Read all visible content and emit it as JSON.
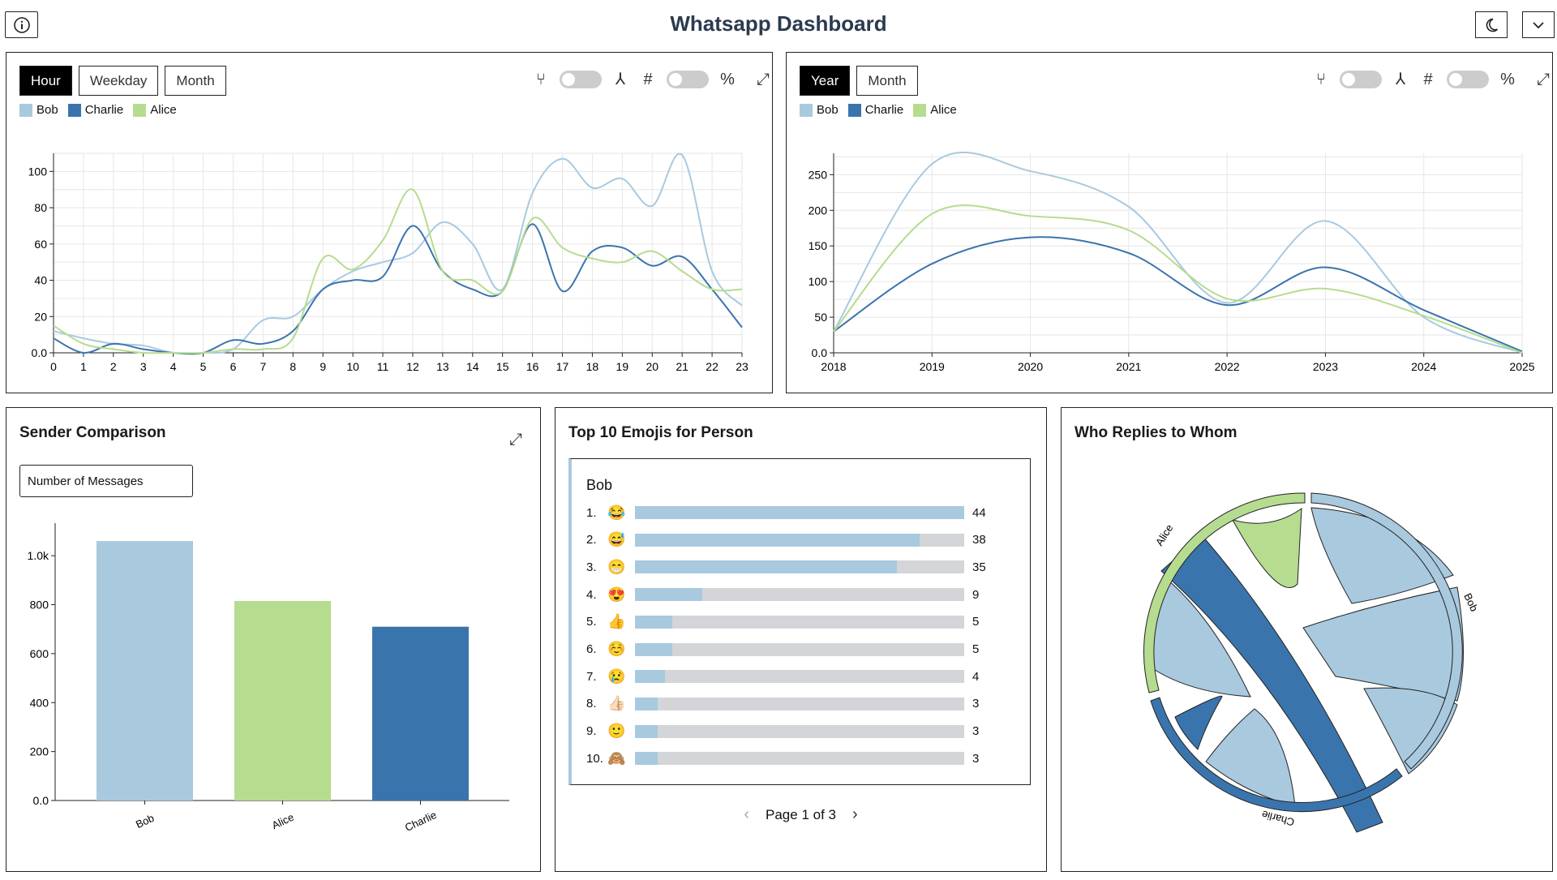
{
  "header": {
    "title": "Whatsapp Dashboard"
  },
  "colors": {
    "bob": "#a9c9df",
    "charlie": "#3a74ad",
    "alice": "#b6dc8f"
  },
  "hour_panel": {
    "tabs": [
      "Hour",
      "Weekday",
      "Month"
    ],
    "active_tab": "Hour",
    "icons": [
      "fork-icon",
      "merge-icon",
      "hash-icon",
      "percent-icon"
    ],
    "legend": [
      "Bob",
      "Charlie",
      "Alice"
    ]
  },
  "year_panel": {
    "tabs": [
      "Year",
      "Month"
    ],
    "active_tab": "Year",
    "legend": [
      "Bob",
      "Charlie",
      "Alice"
    ]
  },
  "sender_panel": {
    "title": "Sender Comparison",
    "select_value": "Number of Messages"
  },
  "emoji_panel": {
    "title": "Top 10 Emojis for Person",
    "person": "Bob",
    "pager": "Page 1 of 3",
    "rows": [
      {
        "rank": "1.",
        "emoji": "😂",
        "count": "44",
        "value": 44
      },
      {
        "rank": "2.",
        "emoji": "😅",
        "count": "38",
        "value": 38
      },
      {
        "rank": "3.",
        "emoji": "😁",
        "count": "35",
        "value": 35
      },
      {
        "rank": "4.",
        "emoji": "😍",
        "count": "9",
        "value": 9
      },
      {
        "rank": "5.",
        "emoji": "👍",
        "count": "5",
        "value": 5
      },
      {
        "rank": "6.",
        "emoji": "☺️",
        "count": "5",
        "value": 5
      },
      {
        "rank": "7.",
        "emoji": "😢",
        "count": "4",
        "value": 4
      },
      {
        "rank": "8.",
        "emoji": "👍🏻",
        "count": "3",
        "value": 3
      },
      {
        "rank": "9.",
        "emoji": "🙂",
        "count": "3",
        "value": 3
      },
      {
        "rank": "10.",
        "emoji": "🙈",
        "count": "3",
        "value": 3
      }
    ]
  },
  "chord_panel": {
    "title": "Who Replies to Whom",
    "labels": [
      "Alice",
      "Bob",
      "Charlie"
    ]
  },
  "chart_data": [
    {
      "type": "line",
      "x": [
        0,
        1,
        2,
        3,
        4,
        5,
        6,
        7,
        8,
        9,
        10,
        11,
        12,
        13,
        14,
        15,
        16,
        17,
        18,
        19,
        20,
        21,
        22,
        23
      ],
      "ylim": [
        0,
        110
      ],
      "yticks": [
        "0.0",
        "20",
        "40",
        "60",
        "80",
        "100"
      ],
      "series": [
        {
          "name": "Bob",
          "values": [
            12,
            8,
            5,
            4,
            0,
            0,
            2,
            18,
            20,
            35,
            45,
            50,
            55,
            72,
            60,
            35,
            88,
            107,
            91,
            96,
            81,
            109,
            45,
            26
          ]
        },
        {
          "name": "Charlie",
          "values": [
            8,
            0,
            5,
            2,
            0,
            0,
            7,
            5,
            12,
            35,
            40,
            42,
            70,
            45,
            35,
            34,
            71,
            34,
            56,
            58,
            48,
            53,
            35,
            14
          ]
        },
        {
          "name": "Alice",
          "values": [
            15,
            5,
            2,
            0,
            0,
            0,
            2,
            2,
            8,
            52,
            46,
            62,
            90,
            45,
            40,
            34,
            74,
            58,
            52,
            50,
            56,
            45,
            35,
            35
          ]
        }
      ]
    },
    {
      "type": "line",
      "x": [
        2018,
        2019,
        2020,
        2021,
        2022,
        2023,
        2024,
        2025
      ],
      "ylim": [
        0,
        280
      ],
      "yticks": [
        "0.0",
        "50",
        "100",
        "150",
        "200",
        "250"
      ],
      "series": [
        {
          "name": "Bob",
          "values": [
            30,
            265,
            255,
            205,
            70,
            185,
            50,
            0
          ]
        },
        {
          "name": "Charlie",
          "values": [
            30,
            125,
            162,
            140,
            67,
            120,
            60,
            2
          ]
        },
        {
          "name": "Alice",
          "values": [
            30,
            195,
            192,
            172,
            76,
            90,
            52,
            0
          ]
        }
      ]
    },
    {
      "type": "bar",
      "categories": [
        "Bob",
        "Alice",
        "Charlie"
      ],
      "values": [
        1060,
        815,
        710
      ],
      "ylim": [
        0,
        1100
      ],
      "yticks": [
        "0.0",
        "200",
        "400",
        "600",
        "800",
        "1.0k"
      ]
    },
    {
      "type": "bar",
      "title": "Top 10 Emojis for Person",
      "categories": [
        "😂",
        "😅",
        "😁",
        "😍",
        "👍",
        "☺️",
        "😢",
        "👍🏻",
        "🙂",
        "🙈"
      ],
      "values": [
        44,
        38,
        35,
        9,
        5,
        5,
        4,
        3,
        3,
        3
      ]
    }
  ]
}
